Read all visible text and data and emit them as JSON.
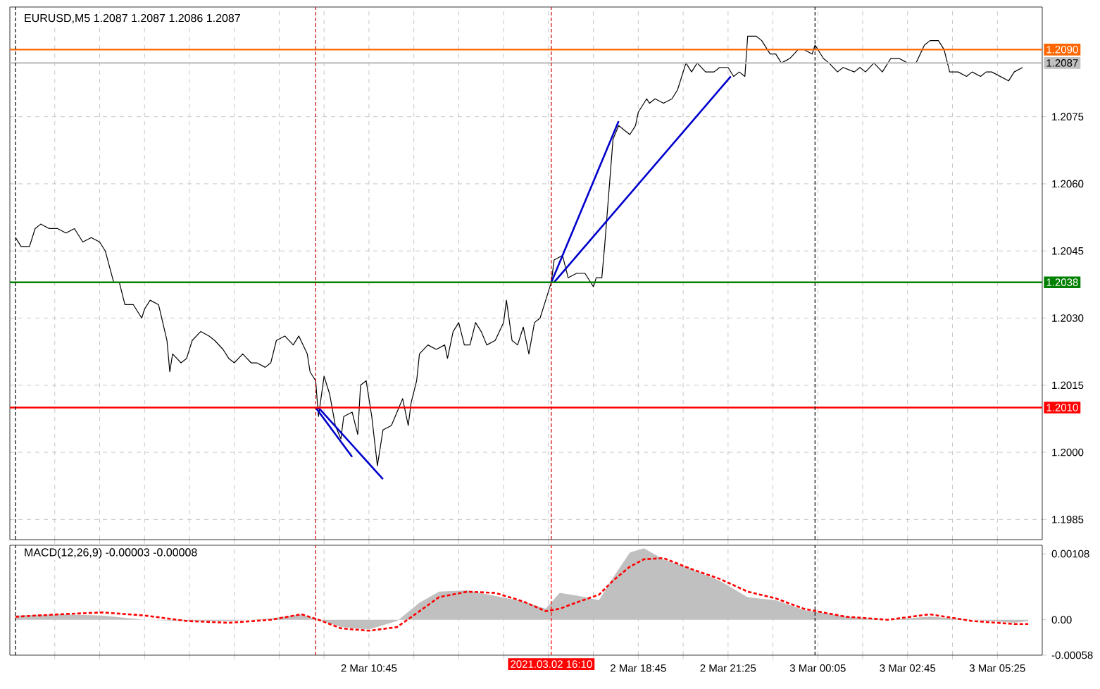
{
  "chart_data": [
    {
      "type": "line",
      "title": "EURUSD,M5 1.2087 1.2087 1.2086 1.2087",
      "x": [
        "2021-03-02T00:15",
        "2021-03-02T00:25",
        "2021-03-02T00:40",
        "2021-03-02T00:50",
        "2021-03-02T01:00",
        "2021-03-02T01:15",
        "2021-03-02T01:30",
        "2021-03-02T01:45",
        "2021-03-02T02:00",
        "2021-03-02T02:15",
        "2021-03-02T02:30",
        "2021-03-02T02:45",
        "2021-03-02T02:55",
        "2021-03-02T03:10",
        "2021-03-02T03:20",
        "2021-03-02T03:30",
        "2021-03-02T03:45",
        "2021-03-02T04:00",
        "2021-03-02T04:05",
        "2021-03-02T04:15",
        "2021-03-02T04:30",
        "2021-03-02T04:45",
        "2021-03-02T04:50",
        "2021-03-02T04:55",
        "2021-03-02T05:10",
        "2021-03-02T05:20",
        "2021-03-02T05:30",
        "2021-03-02T05:45",
        "2021-03-02T06:00",
        "2021-03-02T06:10",
        "2021-03-02T06:25",
        "2021-03-02T06:35",
        "2021-03-02T06:45",
        "2021-03-02T07:00",
        "2021-03-02T07:15",
        "2021-03-02T07:25",
        "2021-03-02T07:40",
        "2021-03-02T07:50",
        "2021-03-02T08:00",
        "2021-03-02T08:15",
        "2021-03-02T08:30",
        "2021-03-02T08:40",
        "2021-03-02T08:55",
        "2021-03-02T09:00",
        "2021-03-02T09:10",
        "2021-03-02T09:15",
        "2021-03-02T09:25",
        "2021-03-02T09:35",
        "2021-03-02T09:45",
        "2021-03-02T09:55",
        "2021-03-02T10:00",
        "2021-03-02T10:15",
        "2021-03-02T10:25",
        "2021-03-02T10:30",
        "2021-03-02T10:40",
        "2021-03-02T10:50",
        "2021-03-02T11:00",
        "2021-03-02T11:05",
        "2021-03-02T11:10",
        "2021-03-02T11:25",
        "2021-03-02T11:35",
        "2021-03-02T11:45",
        "2021-03-02T11:55",
        "2021-03-02T12:00",
        "2021-03-02T12:10",
        "2021-03-02T12:15",
        "2021-03-02T12:30",
        "2021-03-02T12:45",
        "2021-03-02T13:00",
        "2021-03-02T13:05",
        "2021-03-02T13:15",
        "2021-03-02T13:25",
        "2021-03-02T13:35",
        "2021-03-02T13:45",
        "2021-03-02T13:55",
        "2021-03-02T14:05",
        "2021-03-02T14:15",
        "2021-03-02T14:30",
        "2021-03-02T14:45",
        "2021-03-02T14:50",
        "2021-03-02T15:00",
        "2021-03-02T15:10",
        "2021-03-02T15:20",
        "2021-03-02T15:30",
        "2021-03-02T15:40",
        "2021-03-02T15:50",
        "2021-03-02T16:00",
        "2021-03-02T16:10",
        "2021-03-02T16:15",
        "2021-03-02T16:30",
        "2021-03-02T16:40",
        "2021-03-02T16:55",
        "2021-03-02T17:10",
        "2021-03-02T17:15",
        "2021-03-02T17:25",
        "2021-03-02T17:30",
        "2021-03-02T17:40",
        "2021-03-02T17:45",
        "2021-03-02T17:55",
        "2021-03-02T18:00",
        "2021-03-02T18:10",
        "2021-03-02T18:20",
        "2021-03-02T18:30",
        "2021-03-02T18:40",
        "2021-03-02T18:45",
        "2021-03-02T19:00",
        "2021-03-02T19:05",
        "2021-03-02T19:15",
        "2021-03-02T19:30",
        "2021-03-02T19:45",
        "2021-03-02T19:55",
        "2021-03-02T20:10",
        "2021-03-02T20:20",
        "2021-03-02T20:30",
        "2021-03-02T20:45",
        "2021-03-02T21:00",
        "2021-03-02T21:10",
        "2021-03-02T21:25",
        "2021-03-02T21:35",
        "2021-03-02T21:45",
        "2021-03-02T21:55",
        "2021-03-02T22:00",
        "2021-03-02T22:15",
        "2021-03-02T22:25",
        "2021-03-02T22:40",
        "2021-03-02T22:50",
        "2021-03-02T23:00",
        "2021-03-02T23:15",
        "2021-03-02T23:30",
        "2021-03-02T23:40",
        "2021-03-02T23:55",
        "2021-03-03T00:00",
        "2021-03-03T00:15",
        "2021-03-03T00:25",
        "2021-03-03T00:40",
        "2021-03-03T00:50",
        "2021-03-03T01:10",
        "2021-03-03T01:20",
        "2021-03-03T01:30",
        "2021-03-03T01:45",
        "2021-03-03T02:00",
        "2021-03-03T02:15",
        "2021-03-03T02:30",
        "2021-03-03T02:45",
        "2021-03-03T03:00",
        "2021-03-03T03:15",
        "2021-03-03T03:25",
        "2021-03-03T03:40",
        "2021-03-03T03:50",
        "2021-03-03T04:00",
        "2021-03-03T04:15",
        "2021-03-03T04:30",
        "2021-03-03T04:40",
        "2021-03-03T04:55",
        "2021-03-03T05:05",
        "2021-03-03T05:15",
        "2021-03-03T05:30",
        "2021-03-03T05:45",
        "2021-03-03T05:55",
        "2021-03-03T06:10"
      ],
      "xlim": [
        "2021-03-02T00:05",
        "2021-03-03T06:45"
      ],
      "xticks": [
        "2021-03-02T01:25",
        "2021-03-02T02:45",
        "2021-03-02T04:05",
        "2021-03-02T05:25",
        "2021-03-02T06:45",
        "2021-03-02T08:05",
        "2021-03-02T09:25",
        "2021-03-02T10:45",
        "2021-03-02T12:05",
        "2021-03-02T13:25",
        "2021-03-02T14:45",
        "2021-03-02T16:05",
        "2021-03-02T17:25",
        "2021-03-02T18:45",
        "2021-03-02T20:05",
        "2021-03-02T21:25",
        "2021-03-02T22:45",
        "2021-03-03T00:05",
        "2021-03-03T01:25",
        "2021-03-03T02:45",
        "2021-03-03T04:05",
        "2021-03-03T05:25"
      ],
      "ylim": [
        1.19805,
        1.20995
      ],
      "yticks": [
        {
          "value": 1.1985,
          "label": "1.1985"
        },
        {
          "value": 1.2,
          "label": "1.2000"
        },
        {
          "value": 1.2015,
          "label": "1.2015"
        },
        {
          "value": 1.203,
          "label": "1.2030"
        },
        {
          "value": 1.2045,
          "label": "1.2045"
        },
        {
          "value": 1.206,
          "label": "1.2060"
        },
        {
          "value": 1.2075,
          "label": "1.2075"
        }
      ],
      "grid": true,
      "tick_labels": "y",
      "ref_lines": [
        {
          "axis": "y",
          "value": 1.209,
          "label": "1.2090",
          "color": "#ff6600"
        },
        {
          "axis": "y",
          "value": 1.2087,
          "label": "1.2087",
          "color": "#c0c0c0"
        },
        {
          "axis": "y",
          "value": 1.2038,
          "label": "1.2038",
          "color": "#008000"
        },
        {
          "axis": "y",
          "value": 1.201,
          "label": "1.2010",
          "color": "#ff0000"
        },
        {
          "axis": "x",
          "value": "2021-03-02T00:15",
          "color": "#000000",
          "line_style": "dashed"
        },
        {
          "axis": "x",
          "value": "2021-03-02T09:10",
          "color": "#cc0000",
          "line_style": "dashed"
        },
        {
          "axis": "x",
          "value": "2021-03-02T16:10",
          "color": "#cc0000",
          "line_style": "dashed"
        },
        {
          "axis": "x",
          "value": "2021-03-03T00:00",
          "color": "#000000",
          "line_style": "dashed"
        }
      ],
      "series": [
        {
          "color": "#000000",
          "values": [
            1.2048,
            1.2046,
            1.2046,
            1.205,
            1.2051,
            1.205,
            1.205,
            1.2049,
            1.205,
            1.2047,
            1.2048,
            1.2047,
            1.2045,
            1.2038,
            1.2038,
            1.2033,
            1.2033,
            1.203,
            1.2032,
            1.2034,
            1.2033,
            1.2025,
            1.2018,
            1.2022,
            1.202,
            1.2021,
            1.2025,
            1.2027,
            1.2026,
            1.2025,
            1.2023,
            1.2021,
            1.202,
            1.2022,
            1.202,
            1.202,
            1.2019,
            1.202,
            1.2025,
            1.2026,
            1.2024,
            1.2026,
            1.2022,
            1.2018,
            1.2016,
            1.2008,
            1.2017,
            1.2013,
            1.2006,
            1.2003,
            1.2008,
            1.2009,
            1.2004,
            1.2015,
            1.2016,
            1.2008,
            1.1997,
            1.2001,
            1.2005,
            1.2006,
            1.2009,
            1.2012,
            1.2006,
            1.2011,
            1.2016,
            1.2022,
            1.2024,
            1.2023,
            1.2024,
            1.2021,
            1.2027,
            1.2029,
            1.2024,
            1.2024,
            1.2029,
            1.2027,
            1.2024,
            1.2025,
            1.2029,
            1.2034,
            1.2025,
            1.2024,
            1.2028,
            1.2022,
            1.2029,
            1.203,
            1.2034,
            1.2038,
            1.2043,
            1.2044,
            1.2039,
            1.204,
            1.204,
            1.2039,
            1.2037,
            1.2039,
            1.2039,
            1.2046,
            1.2062,
            1.207,
            1.2073,
            1.2072,
            1.2071,
            1.2073,
            1.2076,
            1.2079,
            1.2078,
            1.2079,
            1.2078,
            1.2079,
            1.2081,
            1.2087,
            1.2085,
            1.2087,
            1.2085,
            1.2085,
            1.2086,
            1.2086,
            1.2084,
            1.2085,
            1.2084,
            1.2093,
            1.2093,
            1.2092,
            1.2089,
            1.2089,
            1.2087,
            1.2088,
            1.209,
            1.209,
            1.2089,
            1.2091,
            1.2088,
            1.2087,
            1.2085,
            1.2086,
            1.2085,
            1.2086,
            1.2085,
            1.2087,
            1.2085,
            1.2088,
            1.2088,
            1.2087,
            1.2087,
            1.2091,
            1.2092,
            1.2092,
            1.209,
            1.2085,
            1.2085,
            1.2084,
            1.2085,
            1.2084,
            1.2085,
            1.2085,
            1.2084,
            1.2083,
            1.2085,
            1.2086
          ]
        },
        {
          "type": "line",
          "color": "#0000cd",
          "x": [
            "2021-03-02T09:10",
            "2021-03-02T10:15"
          ],
          "values": [
            1.201,
            1.1999
          ]
        },
        {
          "type": "line",
          "color": "#0000cd",
          "x": [
            "2021-03-02T09:15",
            "2021-03-02T11:10"
          ],
          "values": [
            1.201,
            1.1994
          ]
        },
        {
          "type": "line",
          "color": "#0000cd",
          "x": [
            "2021-03-02T16:10",
            "2021-03-02T18:10"
          ],
          "values": [
            1.2038,
            1.2074
          ]
        },
        {
          "type": "line",
          "color": "#0000cd",
          "x": [
            "2021-03-02T16:15",
            "2021-03-02T21:30"
          ],
          "values": [
            1.2038,
            1.2084
          ]
        }
      ]
    },
    {
      "type": "area",
      "title": "MACD(12,26,9) -0.00003 -0.00008",
      "x": [
        "2021-03-02T00:15",
        "2021-03-02T01:35",
        "2021-03-02T02:50",
        "2021-03-02T04:05",
        "2021-03-02T05:20",
        "2021-03-02T06:35",
        "2021-03-02T07:50",
        "2021-03-02T08:45",
        "2021-03-02T09:15",
        "2021-03-02T09:55",
        "2021-03-02T10:45",
        "2021-03-02T11:35",
        "2021-03-02T12:15",
        "2021-03-02T12:50",
        "2021-03-02T13:40",
        "2021-03-02T14:30",
        "2021-03-02T15:20",
        "2021-03-02T16:00",
        "2021-03-02T16:25",
        "2021-03-02T17:00",
        "2021-03-02T17:35",
        "2021-03-02T18:00",
        "2021-03-02T18:30",
        "2021-03-02T18:55",
        "2021-03-02T19:30",
        "2021-03-02T20:20",
        "2021-03-02T21:10",
        "2021-03-02T22:00",
        "2021-03-02T22:50",
        "2021-03-02T23:40",
        "2021-03-03T00:55",
        "2021-03-03T02:10",
        "2021-03-03T03:25",
        "2021-03-03T04:40",
        "2021-03-03T05:55",
        "2021-03-03T06:20"
      ],
      "xlim": [
        "2021-03-02T00:05",
        "2021-03-03T06:45"
      ],
      "xticks": [
        {
          "value": "2021-03-02T01:25",
          "label": null
        },
        {
          "value": "2021-03-02T02:45",
          "label": null
        },
        {
          "value": "2021-03-02T04:05",
          "label": null
        },
        {
          "value": "2021-03-02T05:25",
          "label": null
        },
        {
          "value": "2021-03-02T06:45",
          "label": null
        },
        {
          "value": "2021-03-02T08:05",
          "label": null
        },
        {
          "value": "2021-03-02T09:25",
          "label": null
        },
        {
          "value": "2021-03-02T10:45",
          "label": "2 Mar 10:45"
        },
        {
          "value": "2021-03-02T12:05",
          "label": null
        },
        {
          "value": "2021-03-02T13:25",
          "label": null
        },
        {
          "value": "2021-03-02T14:45",
          "label": null
        },
        {
          "value": "2021-03-02T16:05",
          "label": null
        },
        {
          "value": "2021-03-02T17:25",
          "label": null
        },
        {
          "value": "2021-03-02T18:45",
          "label": "2 Mar 18:45"
        },
        {
          "value": "2021-03-02T20:05",
          "label": null
        },
        {
          "value": "2021-03-02T21:25",
          "label": "2 Mar 21:25"
        },
        {
          "value": "2021-03-02T22:45",
          "label": null
        },
        {
          "value": "2021-03-03T00:05",
          "label": "3 Mar 00:05"
        },
        {
          "value": "2021-03-03T01:25",
          "label": null
        },
        {
          "value": "2021-03-03T02:45",
          "label": "3 Mar 02:45"
        },
        {
          "value": "2021-03-03T04:05",
          "label": null
        },
        {
          "value": "2021-03-03T05:25",
          "label": "3 Mar 05:25"
        }
      ],
      "ylim": [
        -0.00058,
        0.00122
      ],
      "yticks": [
        {
          "value": -0.00058,
          "label": "-0.00058"
        },
        {
          "value": 0,
          "label": "0.00"
        },
        {
          "value": 0.00108,
          "label": "0.00108"
        }
      ],
      "grid": "x",
      "ref_lines": [
        {
          "axis": "x",
          "value": "2021-03-02T00:15",
          "color": "#000000",
          "line_style": "dashed"
        },
        {
          "axis": "x",
          "value": "2021-03-02T09:10",
          "color": "#cc0000",
          "line_style": "dashed"
        },
        {
          "axis": "x",
          "value": "2021-03-02T16:10",
          "label": "2021.03.02 16:10",
          "color": "#ff0000",
          "line_style": "dashed"
        },
        {
          "axis": "x",
          "value": "2021-03-03T00:00",
          "color": "#000000",
          "line_style": "dashed"
        }
      ],
      "series": [
        {
          "color": "#c0c0c0",
          "values": [
            7e-05,
            9e-05,
            7e-05,
            0,
            -2e-05,
            -2e-05,
            2e-05,
            9e-05,
            0,
            -0.00012,
            -0.00016,
            -2e-05,
            0.00028,
            0.00046,
            0.00048,
            0.00039,
            0.0003,
            0.00018,
            0.00044,
            0.00039,
            0.00032,
            0.00069,
            0.0011,
            0.00117,
            0.00099,
            0.00083,
            0.00064,
            0.00037,
            0.00032,
            0.00016,
            5e-05,
            0,
            5e-05,
            0,
            -5e-05,
            -2e-05
          ]
        },
        {
          "type": "line",
          "color": "#ff0000",
          "line_style": "dashed",
          "values": [
            5e-05,
            9e-05,
            0.00012,
            7e-05,
            -2e-05,
            -5e-05,
            0,
            9e-05,
            0,
            -0.00014,
            -0.00018,
            -0.00012,
            0.00014,
            0.00037,
            0.00046,
            0.00044,
            0.0003,
            0.00014,
            0.00018,
            0.0003,
            0.00041,
            0.00064,
            0.00087,
            0.00099,
            0.00101,
            0.00083,
            0.00067,
            0.00046,
            0.00035,
            0.00018,
            5e-05,
            0,
            9e-05,
            -2e-05,
            -7e-05,
            -7e-05
          ]
        }
      ]
    }
  ]
}
